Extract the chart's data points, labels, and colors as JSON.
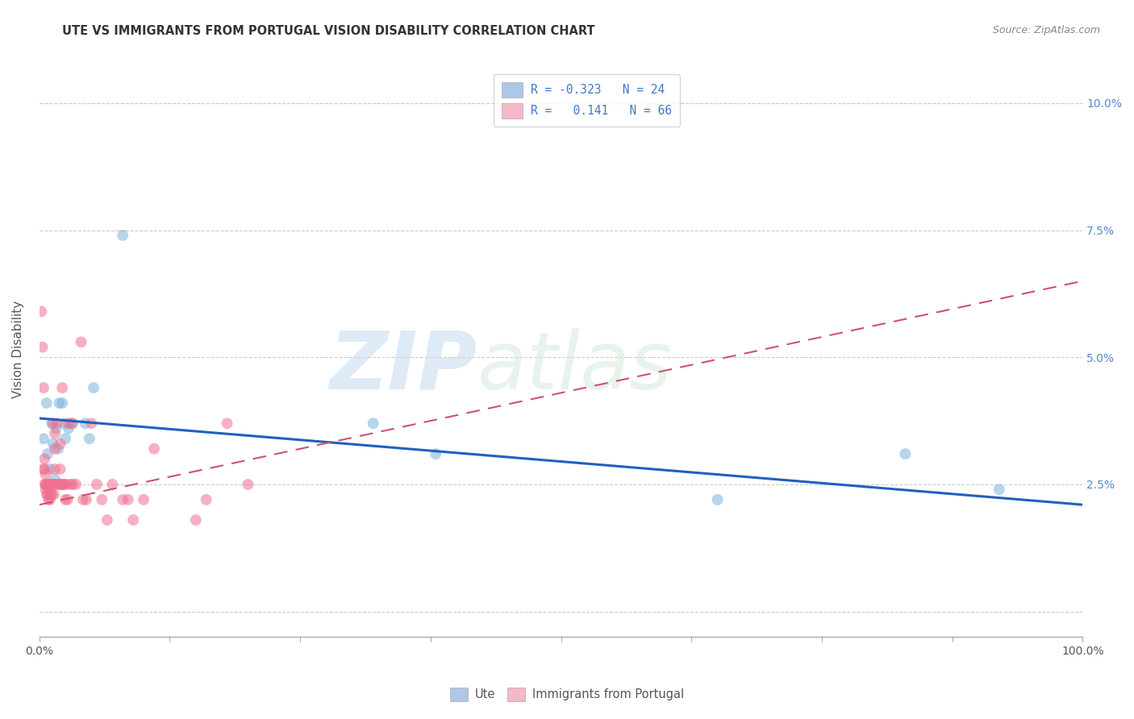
{
  "title": "UTE VS IMMIGRANTS FROM PORTUGAL VISION DISABILITY CORRELATION CHART",
  "source": "Source: ZipAtlas.com",
  "ylabel": "Vision Disability",
  "xlim": [
    0.0,
    1.0
  ],
  "ylim": [
    -0.005,
    0.108
  ],
  "yticks": [
    0.0,
    0.025,
    0.05,
    0.075,
    0.1
  ],
  "ytick_labels": [
    "",
    "2.5%",
    "5.0%",
    "7.5%",
    "10.0%"
  ],
  "xticks": [
    0.0,
    0.125,
    0.25,
    0.375,
    0.5,
    0.625,
    0.75,
    0.875,
    1.0
  ],
  "xtick_labels": [
    "0.0%",
    "",
    "",
    "",
    "",
    "",
    "",
    "",
    "100.0%"
  ],
  "blue_scatter_x": [
    0.004,
    0.007,
    0.008,
    0.01,
    0.012,
    0.013,
    0.015,
    0.016,
    0.018,
    0.019,
    0.022,
    0.024,
    0.025,
    0.028,
    0.032,
    0.044,
    0.048,
    0.052,
    0.08,
    0.32,
    0.38,
    0.65,
    0.83,
    0.92
  ],
  "blue_scatter_y": [
    0.034,
    0.041,
    0.031,
    0.028,
    0.037,
    0.033,
    0.026,
    0.036,
    0.032,
    0.041,
    0.041,
    0.037,
    0.034,
    0.036,
    0.037,
    0.037,
    0.034,
    0.044,
    0.074,
    0.037,
    0.031,
    0.022,
    0.031,
    0.024
  ],
  "pink_scatter_x": [
    0.002,
    0.003,
    0.004,
    0.004,
    0.005,
    0.005,
    0.005,
    0.006,
    0.006,
    0.006,
    0.007,
    0.007,
    0.008,
    0.008,
    0.009,
    0.009,
    0.01,
    0.01,
    0.01,
    0.011,
    0.011,
    0.012,
    0.012,
    0.013,
    0.013,
    0.014,
    0.014,
    0.015,
    0.015,
    0.015,
    0.016,
    0.017,
    0.018,
    0.019,
    0.02,
    0.02,
    0.021,
    0.022,
    0.022,
    0.023,
    0.024,
    0.025,
    0.026,
    0.027,
    0.028,
    0.03,
    0.031,
    0.032,
    0.035,
    0.04,
    0.042,
    0.045,
    0.05,
    0.055,
    0.06,
    0.065,
    0.07,
    0.08,
    0.085,
    0.09,
    0.1,
    0.11,
    0.15,
    0.16,
    0.18,
    0.2
  ],
  "pink_scatter_y": [
    0.059,
    0.052,
    0.044,
    0.028,
    0.03,
    0.028,
    0.025,
    0.027,
    0.025,
    0.024,
    0.025,
    0.023,
    0.025,
    0.023,
    0.025,
    0.022,
    0.025,
    0.024,
    0.022,
    0.025,
    0.023,
    0.025,
    0.023,
    0.037,
    0.025,
    0.025,
    0.023,
    0.035,
    0.032,
    0.028,
    0.025,
    0.037,
    0.025,
    0.025,
    0.033,
    0.028,
    0.025,
    0.025,
    0.044,
    0.025,
    0.025,
    0.022,
    0.025,
    0.022,
    0.037,
    0.025,
    0.037,
    0.025,
    0.025,
    0.053,
    0.022,
    0.022,
    0.037,
    0.025,
    0.022,
    0.018,
    0.025,
    0.022,
    0.022,
    0.018,
    0.022,
    0.032,
    0.018,
    0.022,
    0.037,
    0.025
  ],
  "blue_line_x": [
    0.0,
    1.0
  ],
  "blue_line_y": [
    0.038,
    0.021
  ],
  "pink_line_x": [
    0.0,
    1.0
  ],
  "pink_line_y": [
    0.021,
    0.065
  ],
  "scatter_size": 100,
  "scatter_alpha": 0.55,
  "blue_color": "#7ab3d9",
  "pink_color": "#f07090",
  "blue_line_color": "#2060c0",
  "pink_line_color": "#d05070",
  "watermark_zip": "ZIP",
  "watermark_atlas": "atlas",
  "background_color": "#ffffff",
  "grid_color": "#cccccc"
}
